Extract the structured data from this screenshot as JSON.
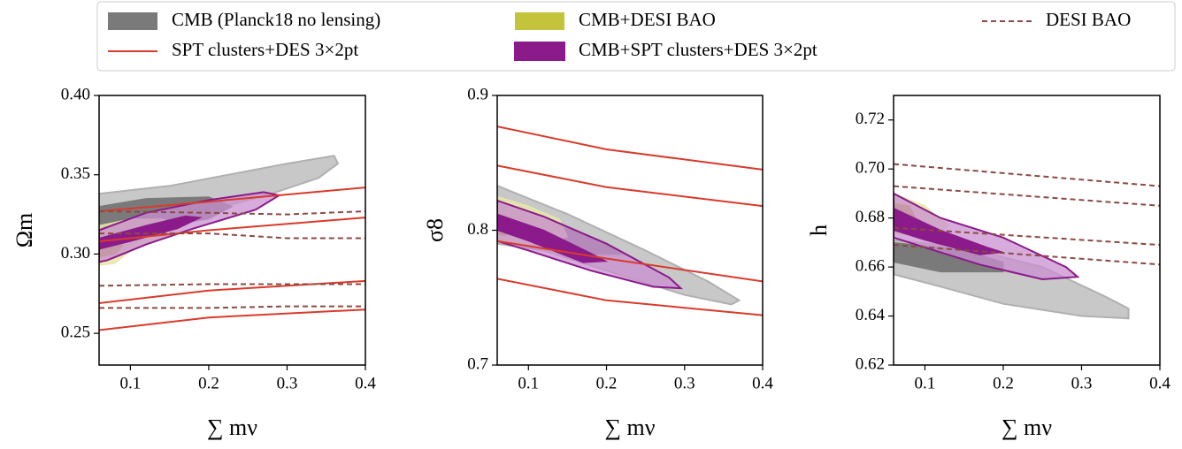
{
  "legend": [
    {
      "label": "CMB (Planck18 no lensing)",
      "color": "#7a7a7a",
      "kind": "patch"
    },
    {
      "label": "SPT clusters+DES 3×2pt",
      "color": "#d93a2b",
      "kind": "line"
    },
    {
      "label": "CMB+DESI BAO",
      "color": "#c4c43c",
      "kind": "patch"
    },
    {
      "label": "CMB+SPT clusters+DES 3×2pt",
      "color": "#8b1a8b",
      "kind": "patch"
    },
    {
      "label": "DESI BAO",
      "color": "#8b4a42",
      "kind": "dashed"
    }
  ],
  "chart_data": [
    {
      "type": "contour",
      "xlabel": "∑ mν",
      "ylabel": "Ωm",
      "xlim": [
        0.06,
        0.4
      ],
      "ylim": [
        0.23,
        0.4
      ],
      "xticks": [
        0.1,
        0.2,
        0.3,
        0.4
      ],
      "yticks": [
        0.25,
        {
          "value": 0.3,
          "label": "0.30"
        },
        0.35,
        {
          "value": 0.4,
          "label": "0.40"
        }
      ],
      "series": [
        {
          "style": "filled",
          "color": "#b0b0b0",
          "fill": "#c8c8c8",
          "x": [
            0.06,
            0.15,
            0.3,
            0.36,
            0.365,
            0.34,
            0.28,
            0.22,
            0.15,
            0.1,
            0.06
          ],
          "values": [
            0.338,
            0.343,
            0.357,
            0.362,
            0.357,
            0.348,
            0.338,
            0.33,
            0.318,
            0.305,
            0.295
          ]
        },
        {
          "style": "filled",
          "color": "#7a7a7a",
          "fill": "#7a7a7a",
          "x": [
            0.06,
            0.12,
            0.2,
            0.23,
            0.2,
            0.12,
            0.06
          ],
          "values": [
            0.33,
            0.335,
            0.336,
            0.33,
            0.322,
            0.316,
            0.31
          ]
        },
        {
          "style": "filled",
          "color": "#e6e6a8",
          "fill": "#e6e6a8",
          "x": [
            0.06,
            0.1,
            0.14,
            0.17,
            0.14,
            0.1,
            0.08,
            0.06
          ],
          "values": [
            0.318,
            0.322,
            0.322,
            0.318,
            0.31,
            0.302,
            0.294,
            0.293
          ]
        },
        {
          "style": "filled",
          "color": "#b8b830",
          "fill": "#b8b830",
          "x": [
            0.06,
            0.08,
            0.09,
            0.08,
            0.06
          ],
          "values": [
            0.31,
            0.31,
            0.305,
            0.3,
            0.298
          ]
        },
        {
          "style": "filled",
          "color": "#8b1a8b",
          "fill": "#c98fcf",
          "x": [
            0.06,
            0.12,
            0.2,
            0.27,
            0.29,
            0.26,
            0.18,
            0.12,
            0.07,
            0.06
          ],
          "values": [
            0.315,
            0.326,
            0.334,
            0.339,
            0.337,
            0.328,
            0.316,
            0.306,
            0.296,
            0.295
          ]
        },
        {
          "style": "filled",
          "color": "#8b1a8b",
          "fill": "#8b1a8b",
          "x": [
            0.06,
            0.12,
            0.17,
            0.19,
            0.16,
            0.1,
            0.06
          ],
          "values": [
            0.31,
            0.318,
            0.324,
            0.323,
            0.316,
            0.308,
            0.303
          ]
        },
        {
          "style": "line",
          "color": "#d93a2b",
          "x": [
            0.06,
            0.2,
            0.4
          ],
          "values": [
            0.327,
            0.333,
            0.342
          ]
        },
        {
          "style": "line",
          "color": "#d93a2b",
          "x": [
            0.06,
            0.2,
            0.4
          ],
          "values": [
            0.308,
            0.315,
            0.323
          ]
        },
        {
          "style": "line",
          "color": "#d93a2b",
          "x": [
            0.06,
            0.2,
            0.4
          ],
          "values": [
            0.269,
            0.277,
            0.283
          ]
        },
        {
          "style": "line",
          "color": "#d93a2b",
          "x": [
            0.06,
            0.2,
            0.4
          ],
          "values": [
            0.252,
            0.26,
            0.265
          ]
        },
        {
          "style": "dashed",
          "color": "#8b4a42",
          "x": [
            0.06,
            0.2,
            0.3,
            0.4
          ],
          "values": [
            0.327,
            0.326,
            0.325,
            0.327
          ]
        },
        {
          "style": "dashed",
          "color": "#8b4a42",
          "x": [
            0.06,
            0.2,
            0.3,
            0.4
          ],
          "values": [
            0.313,
            0.313,
            0.31,
            0.31
          ]
        },
        {
          "style": "dashed",
          "color": "#8b4a42",
          "x": [
            0.06,
            0.2,
            0.3,
            0.4
          ],
          "values": [
            0.28,
            0.281,
            0.281,
            0.281
          ]
        },
        {
          "style": "dashed",
          "color": "#8b4a42",
          "x": [
            0.06,
            0.2,
            0.3,
            0.4
          ],
          "values": [
            0.266,
            0.266,
            0.267,
            0.267
          ]
        }
      ]
    },
    {
      "type": "contour",
      "xlabel": "∑ mν",
      "ylabel": "σ8",
      "xlim": [
        0.06,
        0.4
      ],
      "ylim": [
        0.7,
        0.9
      ],
      "xticks": [
        0.1,
        0.2,
        0.3,
        0.4
      ],
      "yticks": [
        0.7,
        0.8,
        0.9
      ],
      "series": [
        {
          "style": "filled",
          "color": "#b0b0b0",
          "fill": "#c8c8c8",
          "x": [
            0.06,
            0.15,
            0.25,
            0.33,
            0.37,
            0.36,
            0.3,
            0.2,
            0.12,
            0.06
          ],
          "values": [
            0.833,
            0.812,
            0.785,
            0.762,
            0.748,
            0.745,
            0.752,
            0.77,
            0.785,
            0.79
          ]
        },
        {
          "style": "filled",
          "color": "#7a7a7a",
          "fill": "#7a7a7a",
          "x": [
            0.06,
            0.12,
            0.2,
            0.22,
            0.18,
            0.1,
            0.06
          ],
          "values": [
            0.82,
            0.808,
            0.79,
            0.782,
            0.782,
            0.795,
            0.805
          ]
        },
        {
          "style": "filled",
          "color": "#e6e6a8",
          "fill": "#e6e6a8",
          "x": [
            0.06,
            0.1,
            0.14,
            0.15,
            0.12,
            0.08,
            0.06
          ],
          "values": [
            0.825,
            0.818,
            0.808,
            0.795,
            0.79,
            0.79,
            0.792
          ]
        },
        {
          "style": "filled",
          "color": "#b8b830",
          "fill": "#b8b830",
          "x": [
            0.06,
            0.08,
            0.085,
            0.07,
            0.06
          ],
          "values": [
            0.81,
            0.808,
            0.8,
            0.796,
            0.797
          ]
        },
        {
          "style": "filled",
          "color": "#8b1a8b",
          "fill": "#c98fcf",
          "x": [
            0.06,
            0.12,
            0.2,
            0.28,
            0.295,
            0.26,
            0.18,
            0.1,
            0.06
          ],
          "values": [
            0.822,
            0.81,
            0.79,
            0.765,
            0.757,
            0.758,
            0.77,
            0.785,
            0.792
          ]
        },
        {
          "style": "filled",
          "color": "#8b1a8b",
          "fill": "#8b1a8b",
          "x": [
            0.06,
            0.12,
            0.18,
            0.2,
            0.17,
            0.1,
            0.06
          ],
          "values": [
            0.812,
            0.8,
            0.783,
            0.777,
            0.776,
            0.792,
            0.8
          ]
        },
        {
          "style": "line",
          "color": "#d93a2b",
          "x": [
            0.06,
            0.2,
            0.4
          ],
          "values": [
            0.877,
            0.86,
            0.845
          ]
        },
        {
          "style": "line",
          "color": "#d93a2b",
          "x": [
            0.06,
            0.2,
            0.4
          ],
          "values": [
            0.848,
            0.832,
            0.818
          ]
        },
        {
          "style": "line",
          "color": "#d93a2b",
          "x": [
            0.06,
            0.2,
            0.4
          ],
          "values": [
            0.792,
            0.779,
            0.762
          ]
        },
        {
          "style": "line",
          "color": "#d93a2b",
          "x": [
            0.06,
            0.2,
            0.4
          ],
          "values": [
            0.764,
            0.748,
            0.737
          ]
        }
      ]
    },
    {
      "type": "contour",
      "xlabel": "∑ mν",
      "ylabel": "h",
      "xlim": [
        0.06,
        0.4
      ],
      "ylim": [
        0.62,
        0.73
      ],
      "xticks": [
        0.1,
        0.2,
        0.3,
        0.4
      ],
      "yticks": [
        0.62,
        0.64,
        0.66,
        0.68,
        {
          "value": 0.7,
          "label": "0.70"
        },
        0.72
      ],
      "series": [
        {
          "style": "filled",
          "color": "#b0b0b0",
          "fill": "#c8c8c8",
          "x": [
            0.06,
            0.15,
            0.25,
            0.33,
            0.36,
            0.36,
            0.3,
            0.2,
            0.12,
            0.06
          ],
          "values": [
            0.671,
            0.668,
            0.66,
            0.648,
            0.643,
            0.639,
            0.64,
            0.645,
            0.652,
            0.657
          ]
        },
        {
          "style": "filled",
          "color": "#7a7a7a",
          "fill": "#7a7a7a",
          "x": [
            0.06,
            0.15,
            0.2,
            0.2,
            0.12,
            0.06
          ],
          "values": [
            0.67,
            0.667,
            0.662,
            0.658,
            0.658,
            0.662
          ]
        },
        {
          "style": "filled",
          "color": "#e6e6a8",
          "fill": "#e6e6a8",
          "x": [
            0.06,
            0.1,
            0.13,
            0.11,
            0.08,
            0.06
          ],
          "values": [
            0.69,
            0.685,
            0.677,
            0.672,
            0.673,
            0.674
          ]
        },
        {
          "style": "filled",
          "color": "#b8b830",
          "fill": "#b8b830",
          "x": [
            0.06,
            0.08,
            0.09,
            0.07,
            0.06
          ],
          "values": [
            0.686,
            0.685,
            0.679,
            0.677,
            0.678
          ]
        },
        {
          "style": "filled",
          "color": "#8b1a8b",
          "fill": "#c98fcf",
          "x": [
            0.06,
            0.12,
            0.2,
            0.28,
            0.295,
            0.25,
            0.17,
            0.1,
            0.06
          ],
          "values": [
            0.69,
            0.68,
            0.672,
            0.66,
            0.656,
            0.655,
            0.661,
            0.668,
            0.672
          ]
        },
        {
          "style": "filled",
          "color": "#8b1a8b",
          "fill": "#8b1a8b",
          "x": [
            0.06,
            0.12,
            0.18,
            0.2,
            0.17,
            0.1,
            0.06
          ],
          "values": [
            0.684,
            0.675,
            0.668,
            0.666,
            0.665,
            0.671,
            0.675
          ]
        },
        {
          "style": "dashed",
          "color": "#8b4a42",
          "x": [
            0.06,
            0.4
          ],
          "values": [
            0.702,
            0.693
          ]
        },
        {
          "style": "dashed",
          "color": "#8b4a42",
          "x": [
            0.06,
            0.4
          ],
          "values": [
            0.693,
            0.685
          ]
        },
        {
          "style": "dashed",
          "color": "#8b4a42",
          "x": [
            0.06,
            0.4
          ],
          "values": [
            0.676,
            0.669
          ]
        },
        {
          "style": "dashed",
          "color": "#8b4a42",
          "x": [
            0.06,
            0.4
          ],
          "values": [
            0.669,
            0.661
          ]
        }
      ]
    }
  ]
}
